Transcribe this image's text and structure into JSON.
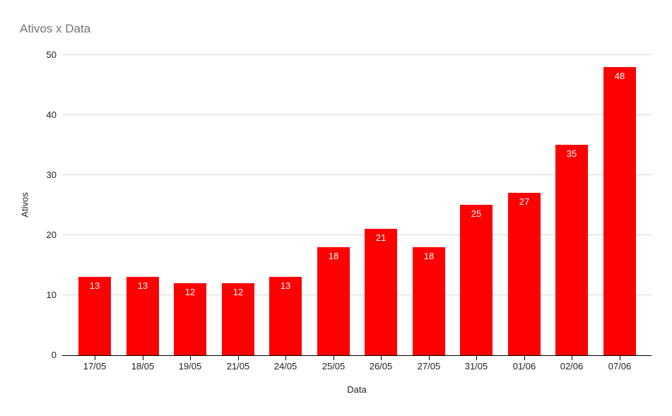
{
  "chart_data": {
    "type": "bar",
    "title": "Ativos x Data",
    "xlabel": "Data",
    "ylabel": "Ativos",
    "categories": [
      "17/05",
      "18/05",
      "19/05",
      "21/05",
      "24/05",
      "25/05",
      "26/05",
      "27/05",
      "31/05",
      "01/06",
      "02/06",
      "07/06"
    ],
    "values": [
      13,
      13,
      12,
      12,
      13,
      18,
      21,
      18,
      25,
      27,
      35,
      48
    ],
    "ylim": [
      0,
      50
    ],
    "yticks": [
      0,
      10,
      20,
      30,
      40,
      50
    ],
    "grid": true,
    "legend": "none",
    "colors": {
      "bar": "#ff0000",
      "value_label": "#ffffff",
      "title": "#757575",
      "axis_text": "#222222",
      "gridline": "#d9d9d9",
      "axis_line": "#000000",
      "background": "#ffffff"
    }
  }
}
